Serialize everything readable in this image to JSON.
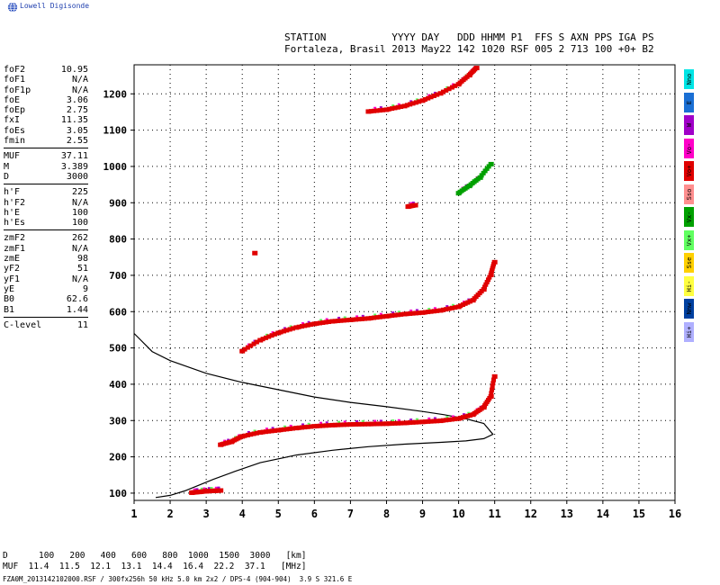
{
  "brand": {
    "name": "Lowell Digisonde",
    "logo_icon": "globe-icon"
  },
  "header": {
    "labels": "STATION           YYYY DAY   DDD HHMM P1  FFS S AXN PPS IGA PS",
    "values": "Fortaleza, Brasil 2013 May22 142 1020 RSF 005 2 713 100 +0+ B2"
  },
  "params": {
    "group1": [
      {
        "name": "foF2",
        "value": "10.95"
      },
      {
        "name": "foF1",
        "value": "N/A"
      },
      {
        "name": "foF1p",
        "value": "N/A"
      },
      {
        "name": "foE",
        "value": "3.06"
      },
      {
        "name": "foEp",
        "value": "2.75"
      },
      {
        "name": "fxI",
        "value": "11.35"
      },
      {
        "name": "foEs",
        "value": "3.05"
      },
      {
        "name": "fmin",
        "value": "2.55"
      }
    ],
    "group2": [
      {
        "name": "MUF",
        "value": "37.11"
      },
      {
        "name": "M",
        "value": "3.389"
      },
      {
        "name": "D",
        "value": "3000"
      }
    ],
    "group3": [
      {
        "name": "h'F",
        "value": "225"
      },
      {
        "name": "h'F2",
        "value": "N/A"
      },
      {
        "name": "h'E",
        "value": "100"
      },
      {
        "name": "h'Es",
        "value": "100"
      }
    ],
    "group4": [
      {
        "name": "zmF2",
        "value": "262"
      },
      {
        "name": "zmF1",
        "value": "N/A"
      },
      {
        "name": "zmE",
        "value": "98"
      },
      {
        "name": "yF2",
        "value": "51"
      },
      {
        "name": "yF1",
        "value": "N/A"
      },
      {
        "name": "yE",
        "value": "9"
      },
      {
        "name": "B0",
        "value": "62.6"
      },
      {
        "name": "B1",
        "value": "1.44"
      }
    ],
    "group5": [
      {
        "name": "C-level",
        "value": "11"
      }
    ]
  },
  "legend": [
    {
      "label": "Nno",
      "color": "#00e5e5"
    },
    {
      "label": "E",
      "color": "#1a6fd4"
    },
    {
      "label": "W",
      "color": "#a000c8"
    },
    {
      "label": "Vo-",
      "color": "#ff00c8"
    },
    {
      "label": "Vo+",
      "color": "#e00000"
    },
    {
      "label": "Sso",
      "color": "#ff8f8f"
    },
    {
      "label": "Vx-",
      "color": "#00a000"
    },
    {
      "label": "Vx+",
      "color": "#60ff60"
    },
    {
      "label": "Sse",
      "color": "#ffd000"
    },
    {
      "label": "Hi-",
      "color": "#ffff40"
    },
    {
      "label": "Nnw",
      "color": "#0040a0"
    },
    {
      "label": "Hi+",
      "color": "#b0b0ff"
    }
  ],
  "footer": {
    "d_row": "D      100   200   400   600   800  1000  1500  3000   [km]",
    "muf_row": "MUF  11.4  11.5  12.1  13.1  14.4  16.4  22.2  37.1   [MHz]",
    "info": "FZA0M_2013142102000.RSF / 300fx256h 50 kHz 5.0 km 2x2 / DPS-4 (904-904)  3.9 S 321.6 E"
  },
  "chart_data": {
    "type": "scatter",
    "xlim": [
      1,
      16
    ],
    "ylim": [
      80,
      1280
    ],
    "x_ticks": [
      1,
      2,
      3,
      4,
      5,
      6,
      7,
      8,
      9,
      10,
      11,
      12,
      13,
      14,
      15,
      16
    ],
    "y_ticks": [
      100,
      200,
      300,
      400,
      500,
      600,
      700,
      800,
      900,
      1000,
      1100,
      1200
    ],
    "grid": true,
    "traces": [
      {
        "name": "F2 1st hop",
        "color": "#e00000",
        "x": [
          3.4,
          3.7,
          4.0,
          4.5,
          5.0,
          5.5,
          6.0,
          6.5,
          7.0,
          7.5,
          8.0,
          8.5,
          9.0,
          9.5,
          10.0,
          10.4,
          10.7,
          10.9,
          11.0
        ],
        "y": [
          232,
          240,
          255,
          266,
          272,
          278,
          283,
          286,
          288,
          289,
          290,
          292,
          295,
          298,
          304,
          315,
          335,
          365,
          420
        ]
      },
      {
        "name": "F2 2nd hop",
        "color": "#e00000",
        "x": [
          4.0,
          4.5,
          5.0,
          5.5,
          6.0,
          6.5,
          7.0,
          7.5,
          8.0,
          8.5,
          9.0,
          9.5,
          10.0,
          10.4,
          10.7,
          10.9,
          11.0
        ],
        "y": [
          490,
          520,
          540,
          555,
          565,
          572,
          576,
          580,
          586,
          592,
          596,
          602,
          612,
          630,
          660,
          700,
          735
        ]
      },
      {
        "name": "F2 3rd hop",
        "color": "#e00000",
        "x": [
          8.6,
          8.8
        ],
        "y": [
          888,
          892
        ]
      },
      {
        "name": "F2 3rd hop upper",
        "color": "#00a000",
        "x": [
          10.0,
          10.3,
          10.6,
          10.9
        ],
        "y": [
          925,
          945,
          968,
          1005
        ]
      },
      {
        "name": "F2 4th hop",
        "color": "#e00000",
        "x": [
          7.5,
          8.0,
          8.5,
          9.0,
          9.5,
          10.0,
          10.3,
          10.5
        ],
        "y": [
          1150,
          1155,
          1165,
          1180,
          1200,
          1225,
          1250,
          1270
        ]
      },
      {
        "name": "E layer",
        "color": "#e00000",
        "x": [
          2.6,
          2.8,
          3.0,
          3.2,
          3.4
        ],
        "y": [
          100,
          102,
          104,
          105,
          106
        ]
      },
      {
        "name": "Isolated point",
        "color": "#e00000",
        "x": [
          4.35
        ],
        "y": [
          760
        ]
      }
    ],
    "profile": {
      "name": "electron density profile",
      "color": "#000000",
      "x": [
        1.0,
        1.2,
        1.5,
        2.0,
        3.0,
        4.0,
        5.0,
        6.0,
        7.0,
        8.0,
        9.0,
        9.6,
        10.2,
        10.7,
        10.95,
        10.7,
        10.2,
        9.5,
        8.5,
        7.5,
        6.5,
        5.5,
        4.5,
        3.8,
        3.2,
        2.8,
        2.4,
        2.0,
        1.6
      ],
      "y": [
        540,
        520,
        490,
        465,
        430,
        405,
        385,
        365,
        350,
        338,
        325,
        316,
        305,
        292,
        262,
        250,
        244,
        240,
        235,
        228,
        218,
        205,
        184,
        160,
        138,
        122,
        106,
        94,
        88
      ]
    }
  }
}
